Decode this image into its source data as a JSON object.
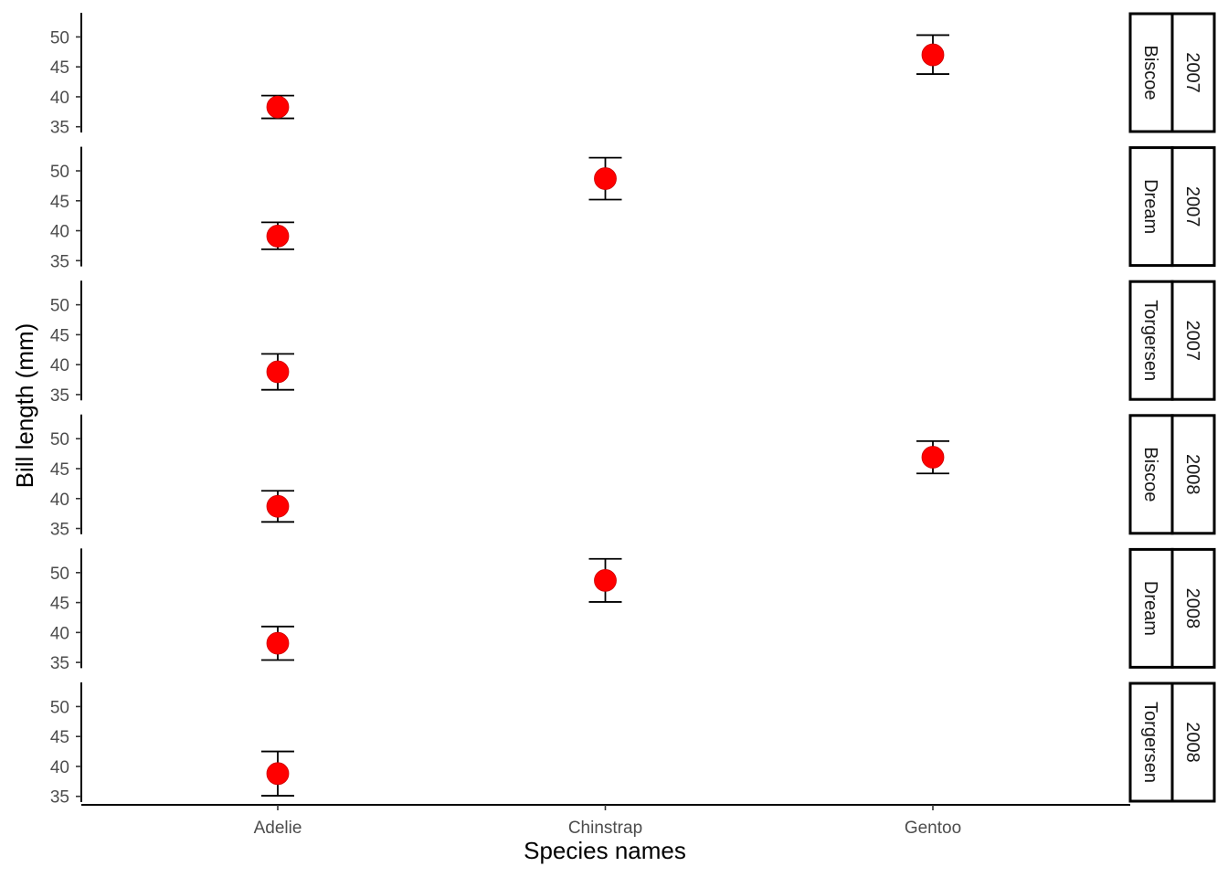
{
  "chart_data": {
    "type": "scatter",
    "subtype": "point-with-errorbars, faceted (island x year)",
    "xlabel": "Species names",
    "ylabel": "Bill length (mm)",
    "categories": [
      "Adelie",
      "Chinstrap",
      "Gentoo"
    ],
    "y_ticks": [
      35,
      40,
      45,
      50
    ],
    "ylim": [
      34.5,
      52.2
    ],
    "point_color": "#ff0000",
    "errorbar_color": "#000000",
    "grid": false,
    "facets": [
      {
        "island": "Biscoe",
        "year": "2007",
        "points": [
          {
            "species": "Adelie",
            "mean": 38.3,
            "lower": 36.4,
            "upper": 40.2
          },
          {
            "species": "Gentoo",
            "mean": 47.0,
            "lower": 43.8,
            "upper": 50.3
          }
        ]
      },
      {
        "island": "Dream",
        "year": "2007",
        "points": [
          {
            "species": "Adelie",
            "mean": 39.1,
            "lower": 36.9,
            "upper": 41.4
          },
          {
            "species": "Chinstrap",
            "mean": 48.7,
            "lower": 45.2,
            "upper": 52.2
          }
        ]
      },
      {
        "island": "Torgersen",
        "year": "2007",
        "points": [
          {
            "species": "Adelie",
            "mean": 38.8,
            "lower": 35.8,
            "upper": 41.8
          }
        ]
      },
      {
        "island": "Biscoe",
        "year": "2008",
        "points": [
          {
            "species": "Adelie",
            "mean": 38.7,
            "lower": 36.1,
            "upper": 41.3
          },
          {
            "species": "Gentoo",
            "mean": 46.9,
            "lower": 44.2,
            "upper": 49.6
          }
        ]
      },
      {
        "island": "Dream",
        "year": "2008",
        "points": [
          {
            "species": "Adelie",
            "mean": 38.2,
            "lower": 35.4,
            "upper": 41.0
          },
          {
            "species": "Chinstrap",
            "mean": 48.7,
            "lower": 45.1,
            "upper": 52.3
          }
        ]
      },
      {
        "island": "Torgersen",
        "year": "2008",
        "points": [
          {
            "species": "Adelie",
            "mean": 38.8,
            "lower": 35.1,
            "upper": 42.5
          }
        ]
      }
    ]
  }
}
